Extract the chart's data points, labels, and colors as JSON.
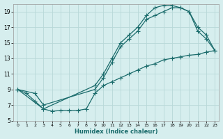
{
  "xlabel": "Humidex (Indice chaleur)",
  "bg_color": "#d6eeee",
  "grid_color": "#b8d8d8",
  "line_color": "#1a6b6b",
  "xlim": [
    -0.5,
    23.5
  ],
  "ylim": [
    5,
    20
  ],
  "yticks": [
    5,
    7,
    9,
    11,
    13,
    15,
    17,
    19
  ],
  "xticks": [
    0,
    1,
    2,
    3,
    4,
    5,
    6,
    7,
    8,
    9,
    10,
    11,
    12,
    13,
    14,
    15,
    16,
    17,
    18,
    19,
    20,
    21,
    22,
    23
  ],
  "line1_x": [
    0,
    1,
    2,
    3,
    4,
    5,
    6,
    7,
    8,
    9,
    10,
    11,
    12,
    13,
    14,
    15,
    16,
    17,
    18,
    19,
    20,
    21,
    22,
    23
  ],
  "line1_y": [
    9,
    8.5,
    7.5,
    6.5,
    6.2,
    6.3,
    6.3,
    6.3,
    6.5,
    8.5,
    9.5,
    10.0,
    10.5,
    11.0,
    11.5,
    12.0,
    12.3,
    12.8,
    13.0,
    13.2,
    13.4,
    13.5,
    13.8,
    14.0
  ],
  "line2_x": [
    0,
    2,
    3,
    9,
    10,
    11,
    12,
    13,
    14,
    15,
    16,
    17,
    18,
    19,
    20,
    21,
    22,
    23
  ],
  "line2_y": [
    9,
    8.5,
    7.0,
    9.0,
    10.5,
    12.5,
    14.5,
    15.5,
    16.5,
    18.0,
    18.5,
    19.0,
    19.5,
    19.5,
    19.0,
    17.0,
    16.0,
    14.0
  ],
  "line3_x": [
    0,
    3,
    9,
    10,
    11,
    12,
    13,
    14,
    15,
    16,
    17,
    18,
    19,
    20,
    21,
    22,
    23
  ],
  "line3_y": [
    9,
    6.5,
    9.5,
    11.0,
    13.0,
    15.0,
    16.0,
    17.0,
    18.5,
    19.5,
    19.8,
    19.8,
    19.5,
    19.0,
    16.5,
    15.5,
    14.0
  ]
}
